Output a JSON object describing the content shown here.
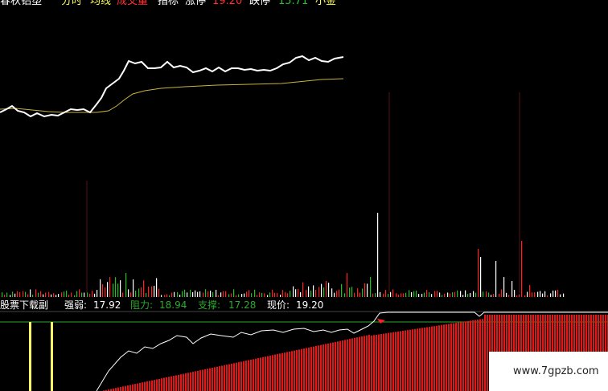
{
  "header": {
    "stock_name": "春秋铝塑",
    "period_label": "分时",
    "price_label": "均线",
    "volume_label": "成交量",
    "indicator_label": "指标",
    "limit_up_label": "涨停",
    "limit_up_value": "19.20",
    "limit_down_label": "跌停",
    "limit_down_value": "15.71",
    "fund_label": "小金"
  },
  "indicator": {
    "name": "股票下载副",
    "strength_label": "强弱:",
    "strength_value": "17.92",
    "resistance_label": "阻力:",
    "resistance_value": "18.94",
    "support_label": "支撑:",
    "support_value": "17.28",
    "price_label": "现价:",
    "price_value": "19.20"
  },
  "watermark": "www.7gpzb.com",
  "colors": {
    "background": "#000000",
    "price_line": "#ffffff",
    "avg_line": "#c8b43c",
    "up": "#ff2020",
    "down": "#20c020",
    "grid": "#8b1a1a",
    "yellow": "#ffff60",
    "green_line": "#2ea82e"
  }
}
